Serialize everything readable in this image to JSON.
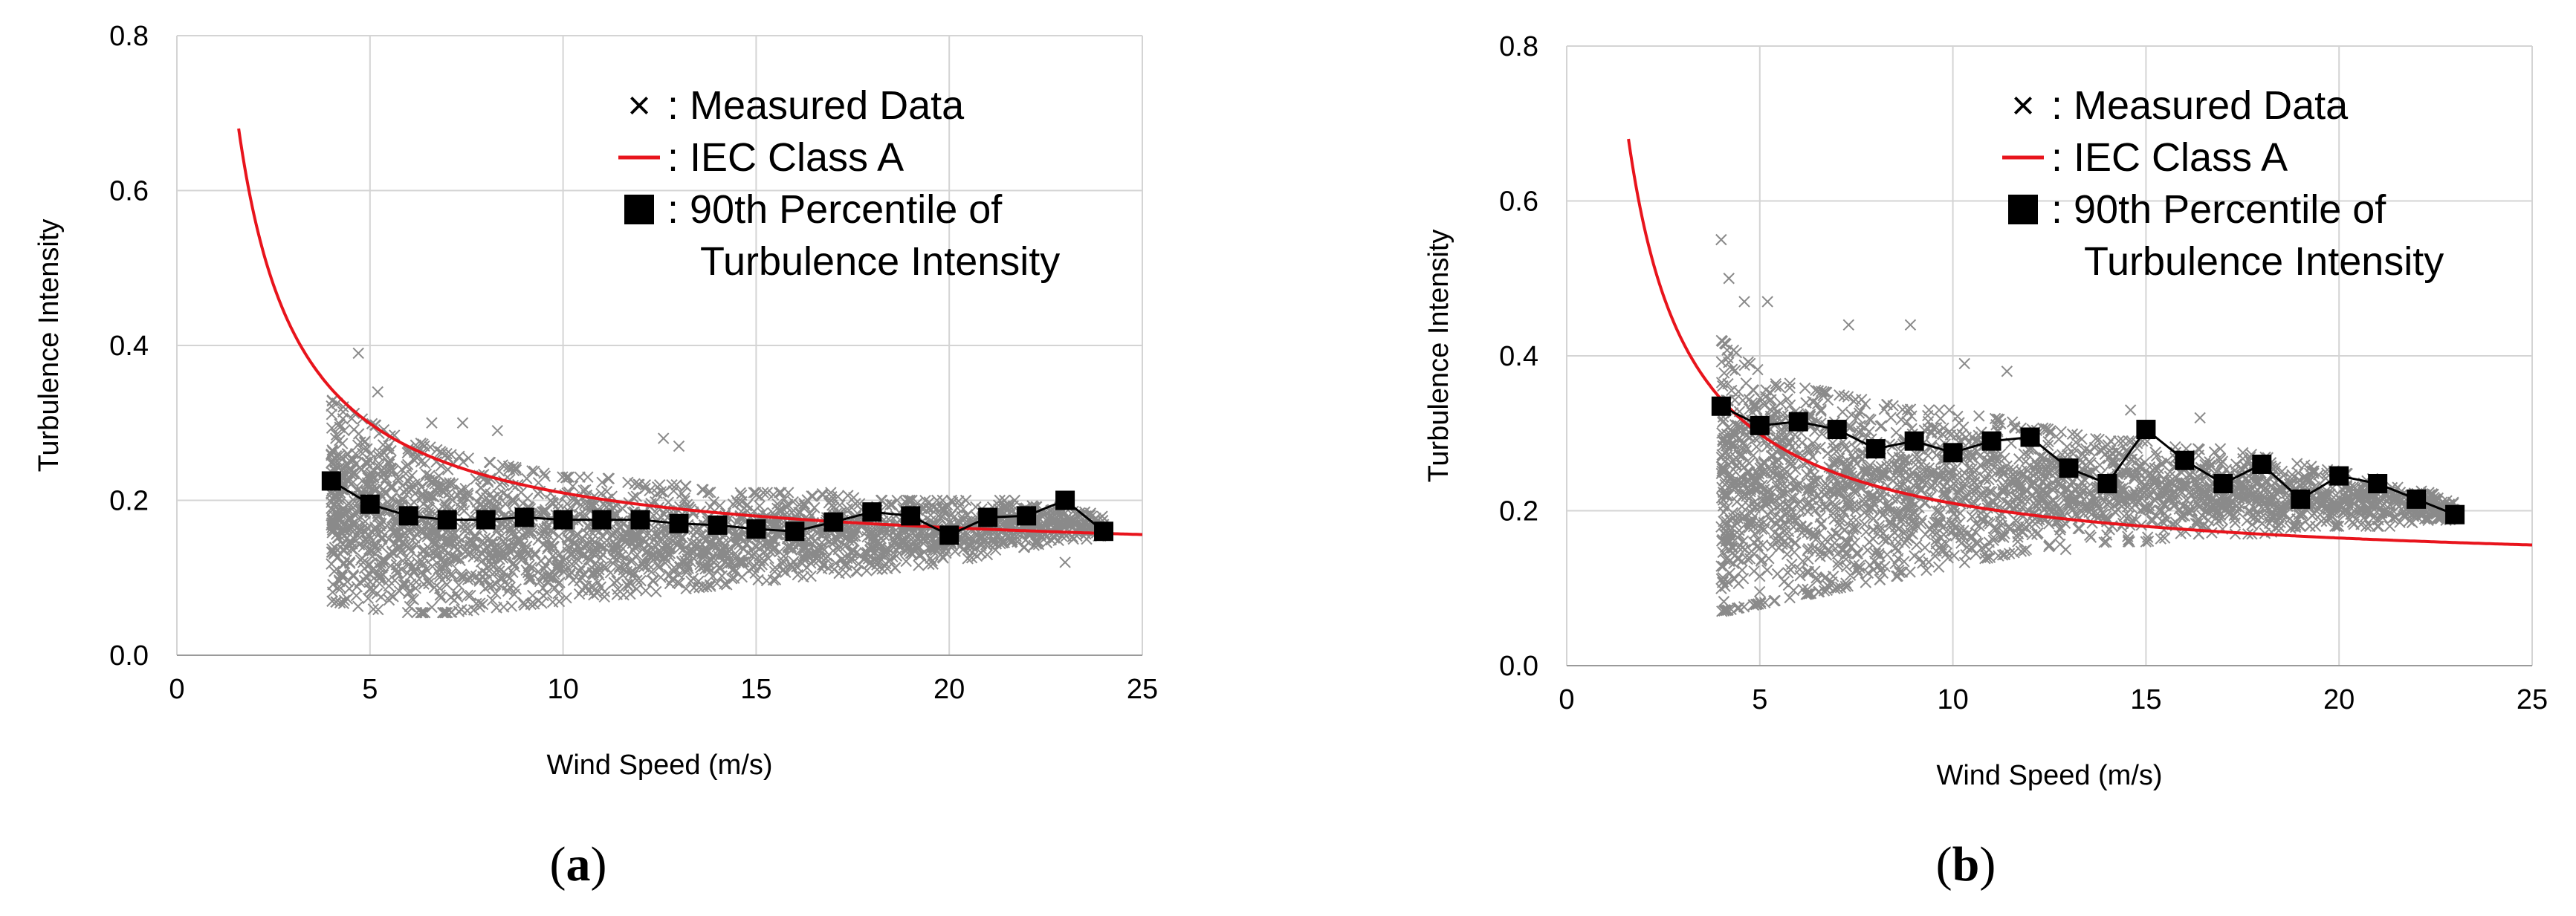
{
  "chart_data": [
    {
      "type": "scatter",
      "panel_label": "a",
      "caption_open": "(",
      "caption_close": ")",
      "xlabel": "Wind Speed (m/s)",
      "ylabel": "Turbulence Intensity",
      "xlim": [
        0,
        25
      ],
      "ylim": [
        0.0,
        0.8
      ],
      "x_ticks": [
        0,
        5,
        10,
        15,
        20,
        25
      ],
      "y_ticks": [
        0.0,
        0.2,
        0.4,
        0.6,
        0.8
      ],
      "y_tick_labels": [
        "0.0",
        "0.2",
        "0.4",
        "0.6",
        "0.8"
      ],
      "grid": true,
      "legend_position": "top-right",
      "legend": [
        {
          "marker": "×",
          "label": ": Measured Data"
        },
        {
          "marker": "line",
          "label": ": IEC Class A"
        },
        {
          "marker": "■",
          "label": ": 90th Percentile of",
          "label_line2": "Turbulence Intensity"
        }
      ],
      "colors": {
        "iec_curve": "#e8141c",
        "measured": "#8a8a8a",
        "percentile": "#000000",
        "grid": "#d4d4d4"
      },
      "scatter_envelope": {
        "x": [
          4,
          5,
          6,
          7,
          8,
          9,
          10,
          11,
          12,
          13,
          14,
          15,
          16,
          17,
          18,
          19,
          20,
          21,
          22,
          23,
          24
        ],
        "low": [
          0.07,
          0.06,
          0.055,
          0.055,
          0.06,
          0.065,
          0.07,
          0.075,
          0.08,
          0.085,
          0.09,
          0.095,
          0.1,
          0.105,
          0.11,
          0.115,
          0.12,
          0.13,
          0.14,
          0.15,
          0.15
        ],
        "high": [
          0.33,
          0.3,
          0.28,
          0.26,
          0.25,
          0.24,
          0.23,
          0.23,
          0.22,
          0.22,
          0.21,
          0.21,
          0.21,
          0.21,
          0.2,
          0.2,
          0.2,
          0.2,
          0.2,
          0.19,
          0.18
        ]
      },
      "scatter_outliers": [
        [
          4.7,
          0.39
        ],
        [
          5.2,
          0.34
        ],
        [
          6.6,
          0.3
        ],
        [
          7.4,
          0.3
        ],
        [
          8.3,
          0.29
        ],
        [
          12.6,
          0.28
        ],
        [
          13.0,
          0.27
        ],
        [
          23.0,
          0.12
        ]
      ],
      "iec_curve": {
        "iref": 0.16,
        "formula": "I = Iref*(0.75 + 5.6/V)",
        "x_start": 1.6,
        "x_end": 25
      },
      "percentile": {
        "x": [
          4,
          5,
          6,
          7,
          8,
          9,
          10,
          11,
          12,
          13,
          14,
          15,
          16,
          17,
          18,
          19,
          20,
          21,
          22,
          23,
          24
        ],
        "y": [
          0.225,
          0.195,
          0.18,
          0.175,
          0.175,
          0.178,
          0.175,
          0.175,
          0.175,
          0.17,
          0.168,
          0.163,
          0.16,
          0.172,
          0.185,
          0.18,
          0.155,
          0.178,
          0.18,
          0.2,
          0.16
        ]
      }
    },
    {
      "type": "scatter",
      "panel_label": "b",
      "caption_open": "(",
      "caption_close": ")",
      "xlabel": "Wind Speed (m/s)",
      "ylabel": "Turbulence Intensity",
      "xlim": [
        0,
        25
      ],
      "ylim": [
        0.0,
        0.8
      ],
      "x_ticks": [
        0,
        5,
        10,
        15,
        20,
        25
      ],
      "y_ticks": [
        0.0,
        0.2,
        0.4,
        0.6,
        0.8
      ],
      "y_tick_labels": [
        "0.0",
        "0.2",
        "0.4",
        "0.6",
        "0.8"
      ],
      "grid": true,
      "legend_position": "top-right",
      "legend": [
        {
          "marker": "×",
          "label": ": Measured Data"
        },
        {
          "marker": "line",
          "label": ": IEC Class A"
        },
        {
          "marker": "■",
          "label": ": 90th Percentile of",
          "label_line2": "Turbulence Intensity"
        }
      ],
      "colors": {
        "iec_curve": "#e8141c",
        "measured": "#8a8a8a",
        "percentile": "#000000",
        "grid": "#d4d4d4"
      },
      "scatter_envelope": {
        "x": [
          4,
          5,
          6,
          7,
          8,
          9,
          10,
          11,
          12,
          13,
          14,
          15,
          16,
          17,
          18,
          19,
          20,
          21,
          22,
          23
        ],
        "low": [
          0.07,
          0.08,
          0.09,
          0.1,
          0.11,
          0.12,
          0.13,
          0.14,
          0.15,
          0.15,
          0.16,
          0.16,
          0.17,
          0.17,
          0.17,
          0.18,
          0.18,
          0.18,
          0.18,
          0.19
        ],
        "high": [
          0.42,
          0.38,
          0.36,
          0.35,
          0.34,
          0.33,
          0.33,
          0.32,
          0.31,
          0.3,
          0.29,
          0.29,
          0.28,
          0.28,
          0.27,
          0.26,
          0.25,
          0.24,
          0.23,
          0.21
        ]
      },
      "scatter_outliers": [
        [
          4.0,
          0.55
        ],
        [
          4.2,
          0.5
        ],
        [
          4.6,
          0.47
        ],
        [
          5.2,
          0.47
        ],
        [
          7.3,
          0.44
        ],
        [
          8.9,
          0.44
        ],
        [
          10.3,
          0.39
        ],
        [
          11.4,
          0.38
        ],
        [
          14.6,
          0.33
        ],
        [
          16.4,
          0.32
        ]
      ],
      "iec_curve": {
        "iref": 0.16,
        "formula": "I = Iref*(0.75 + 5.6/V)",
        "x_start": 1.6,
        "x_end": 25
      },
      "percentile": {
        "x": [
          4,
          5,
          6,
          7,
          8,
          9,
          10,
          11,
          12,
          13,
          14,
          15,
          16,
          17,
          18,
          19,
          20,
          21,
          22,
          23
        ],
        "y": [
          0.335,
          0.31,
          0.315,
          0.305,
          0.28,
          0.29,
          0.275,
          0.29,
          0.295,
          0.255,
          0.235,
          0.305,
          0.265,
          0.235,
          0.26,
          0.215,
          0.245,
          0.235,
          0.215,
          0.195
        ]
      }
    }
  ]
}
